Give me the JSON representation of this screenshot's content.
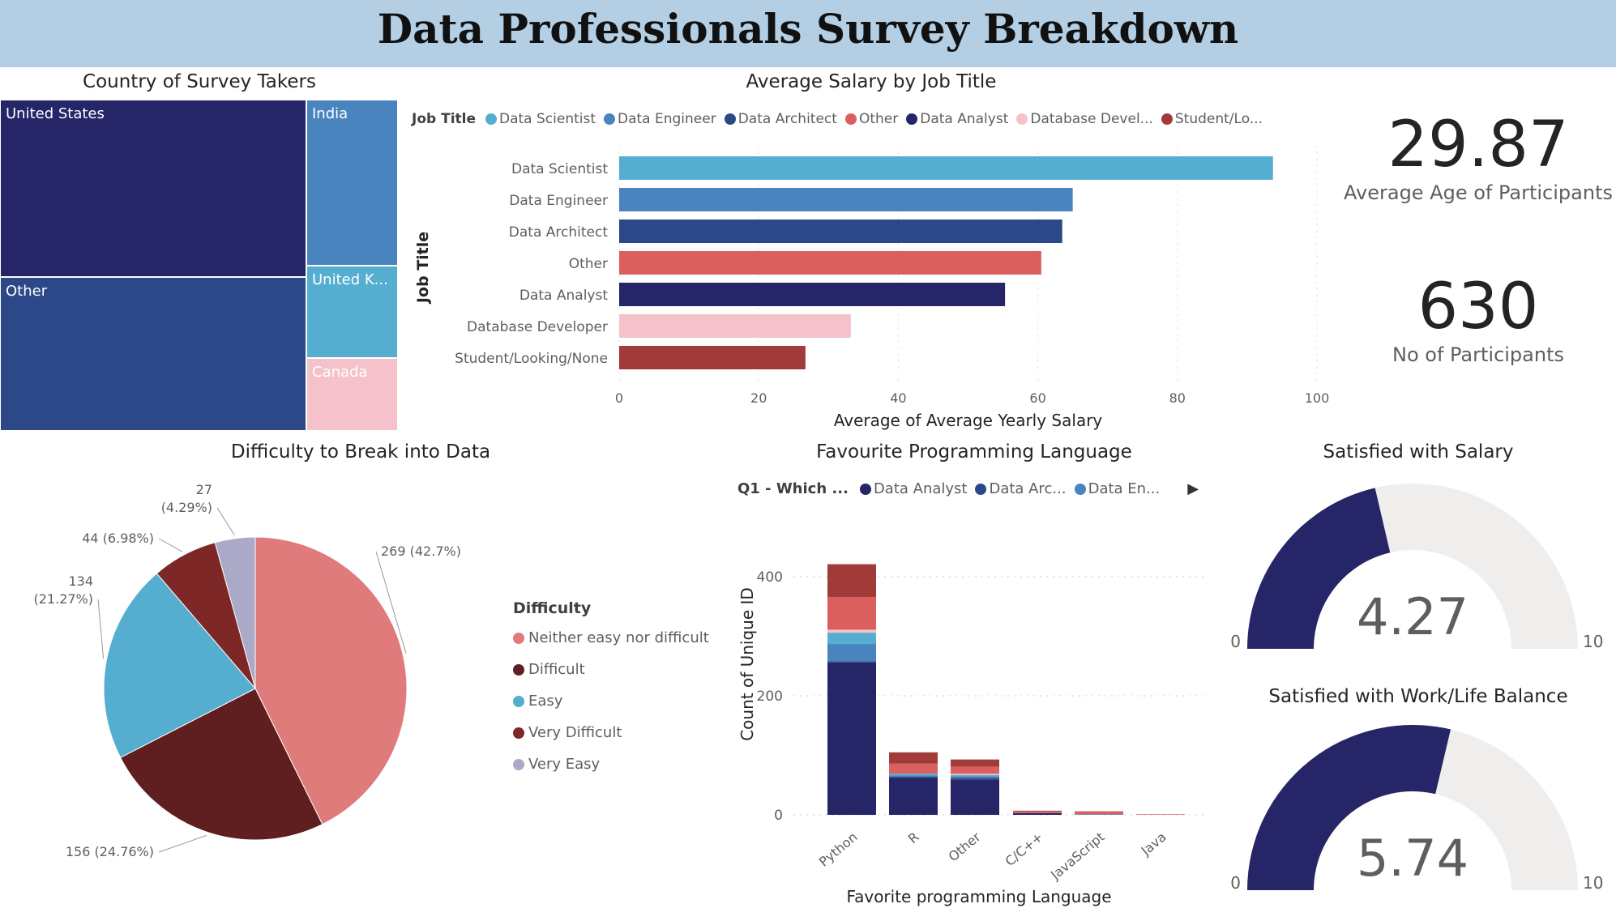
{
  "title": "Data Professionals Survey Breakdown",
  "treemap": {
    "title": "Country of Survey Takers",
    "items": [
      {
        "label": "United States",
        "color": "#252568"
      },
      {
        "label": "India",
        "color": "#4a84bf"
      },
      {
        "label": "Other",
        "color": "#2c4888"
      },
      {
        "label": "United K...",
        "color": "#55aed0"
      },
      {
        "label": "Canada",
        "color": "#f5c2cc"
      }
    ]
  },
  "salary_chart": {
    "title": "Average Salary by Job Title",
    "legend_title": "Job Title",
    "legend": [
      {
        "label": "Data Scientist",
        "color": "#55aed0"
      },
      {
        "label": "Data Engineer",
        "color": "#4a84bf"
      },
      {
        "label": "Data Architect",
        "color": "#2c4888"
      },
      {
        "label": "Other",
        "color": "#dc5f5f"
      },
      {
        "label": "Data Analyst",
        "color": "#252568"
      },
      {
        "label": "Database Devel...",
        "color": "#f5c2cc"
      },
      {
        "label": "Student/Lo...",
        "color": "#a03b3a"
      }
    ]
  },
  "kpis": {
    "avg_age": {
      "value": "29.87",
      "label": "Average Age of Participants"
    },
    "participants": {
      "value": "630",
      "label": "No of Participants"
    }
  },
  "pie": {
    "title": "Difficulty to Break into Data",
    "legend_title": "Difficulty"
  },
  "lang_chart": {
    "title": "Favourite Programming Language",
    "legend_title": "Q1 - Which ...",
    "legend": [
      {
        "label": "Data Analyst",
        "color": "#252568"
      },
      {
        "label": "Data Arc...",
        "color": "#2c4888"
      },
      {
        "label": "Data En...",
        "color": "#4a84bf"
      }
    ],
    "more_icon": "triangle-right"
  },
  "gauges": [
    {
      "title": "Satisfied with Salary",
      "value": 4.27,
      "value_label": "4.27",
      "min_label": "0",
      "max_label": "10",
      "min": 0,
      "max": 10
    },
    {
      "title": "Satisfied with Work/Life Balance",
      "value": 5.74,
      "value_label": "5.74",
      "min_label": "0",
      "max_label": "10",
      "min": 0,
      "max": 10
    }
  ],
  "chart_data": [
    {
      "type": "bar",
      "orientation": "horizontal",
      "title": "Average Salary by Job Title",
      "xlabel": "Average of Average Yearly Salary",
      "ylabel": "Job Title",
      "xlim": [
        0,
        100
      ],
      "xticks": [
        "0",
        "20",
        "40",
        "60",
        "80",
        "100"
      ],
      "grid": true,
      "categories": [
        "Data Scientist",
        "Data Engineer",
        "Data Architect",
        "Other",
        "Data Analyst",
        "Database Developer",
        "Student/Looking/None"
      ],
      "values": [
        93.7,
        65,
        63.5,
        60.5,
        55.3,
        33.2,
        26.7
      ],
      "colors": [
        "#55aed0",
        "#4a84bf",
        "#2c4888",
        "#dc5f5f",
        "#252568",
        "#f5c2cc",
        "#a03b3a"
      ]
    },
    {
      "type": "pie",
      "title": "Difficulty to Break into Data",
      "categories": [
        "Neither easy nor difficult",
        "Difficult",
        "Easy",
        "Very Difficult",
        "Very Easy"
      ],
      "values": [
        269,
        156,
        134,
        44,
        27
      ],
      "data_labels": [
        "269 (42.7%)",
        "156 (24.76%)",
        "134 (21.27%)",
        "44 (6.98%)",
        "27 (4.29%)"
      ],
      "colors": [
        "#e07b7b",
        "#5f1e1f",
        "#55aed0",
        "#7e2727",
        "#aaaac8"
      ],
      "legend": "right"
    },
    {
      "type": "bar",
      "stacked": true,
      "title": "Favourite Programming Language",
      "xlabel": "Favorite programming Language",
      "ylabel": "Count of Unique ID",
      "ylim": [
        0,
        420
      ],
      "yticks": [
        "0",
        "200",
        "400"
      ],
      "grid": true,
      "categories": [
        "Python",
        "R",
        "Other",
        "C/C++",
        "JavaScript",
        "Java"
      ],
      "series": [
        {
          "name": "Data Analyst",
          "color": "#252568",
          "values": [
            256,
            62,
            59,
            3,
            0,
            0
          ]
        },
        {
          "name": "Data Architect",
          "color": "#2c4888",
          "values": [
            2,
            2,
            3,
            0,
            0,
            0
          ]
        },
        {
          "name": "Data Engineer",
          "color": "#4a84bf",
          "values": [
            29,
            2,
            3,
            0,
            1,
            0
          ]
        },
        {
          "color": "#55aed0",
          "values": [
            19,
            3,
            2,
            0,
            0,
            0
          ]
        },
        {
          "color": "#f5c2cc",
          "values": [
            5,
            0,
            2,
            0,
            0,
            0
          ]
        },
        {
          "color": "#dc5f5f",
          "values": [
            55,
            17,
            12,
            3,
            5,
            1
          ]
        },
        {
          "color": "#a03b3a",
          "values": [
            55,
            19,
            12,
            1,
            0,
            0
          ]
        }
      ]
    }
  ]
}
